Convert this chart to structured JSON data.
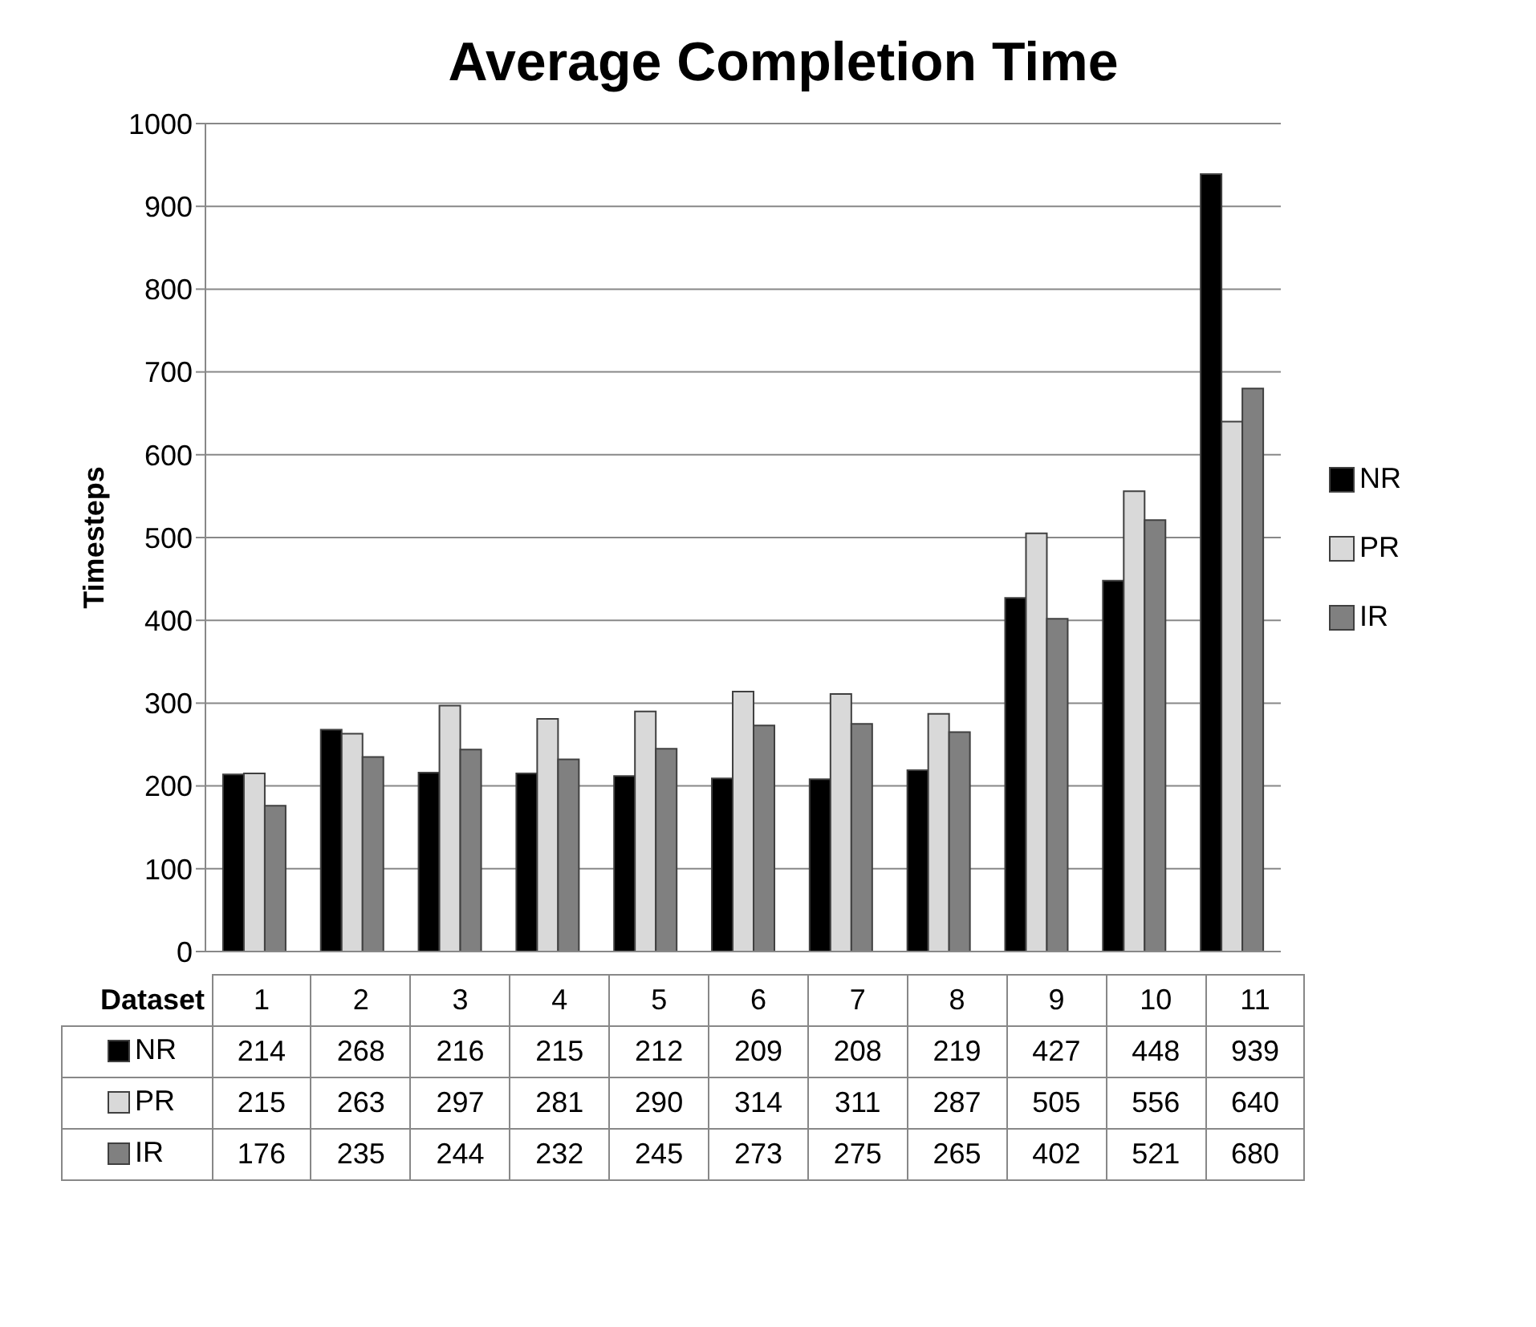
{
  "chart_data": {
    "type": "bar",
    "title": "Average Completion Time",
    "xlabel": "Dataset",
    "ylabel": "Timesteps",
    "categories": [
      "1",
      "2",
      "3",
      "4",
      "5",
      "6",
      "7",
      "8",
      "9",
      "10",
      "11"
    ],
    "series": [
      {
        "name": "NR",
        "color": "#000000",
        "values": [
          214,
          268,
          216,
          215,
          212,
          209,
          208,
          219,
          427,
          448,
          939
        ]
      },
      {
        "name": "PR",
        "color": "#d9d9d9",
        "values": [
          215,
          263,
          297,
          281,
          290,
          314,
          311,
          287,
          505,
          556,
          640
        ]
      },
      {
        "name": "IR",
        "color": "#808080",
        "values": [
          176,
          235,
          244,
          232,
          245,
          273,
          275,
          265,
          402,
          521,
          680
        ]
      }
    ],
    "ylim": [
      0,
      1000
    ],
    "yticks": [
      0,
      100,
      200,
      300,
      400,
      500,
      600,
      700,
      800,
      900,
      1000
    ],
    "grid": "y",
    "legend": "right",
    "data_labels": true
  }
}
